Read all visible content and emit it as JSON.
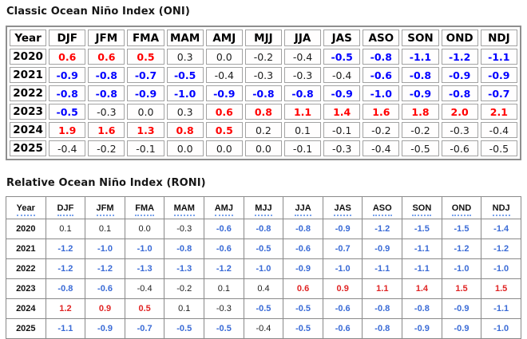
{
  "colors": {
    "oni_warm": "#ff0000",
    "oni_cool": "#0000ff",
    "roni_warm": "#e02424",
    "roni_cool": "#3a6bd6",
    "header_underline": "#7aa3ec",
    "oni_border": "#8f8f8f",
    "roni_border": "#8a8a8a"
  },
  "tables": [
    {
      "id": "oni",
      "title": "Classic Ocean Niño Index (ONI)",
      "columns": [
        "Year",
        "DJF",
        "JFM",
        "FMA",
        "MAM",
        "AMJ",
        "MJJ",
        "JJA",
        "JAS",
        "ASO",
        "SON",
        "OND",
        "NDJ"
      ],
      "rows": [
        {
          "year": "2020",
          "values": [
            "0.6",
            "0.6",
            "0.5",
            "0.3",
            "0.0",
            "-0.2",
            "-0.4",
            "-0.5",
            "-0.8",
            "-1.1",
            "-1.2",
            "-1.1"
          ],
          "tones": [
            "w",
            "w",
            "w",
            "n",
            "n",
            "n",
            "n",
            "c",
            "c",
            "c",
            "c",
            "c"
          ]
        },
        {
          "year": "2021",
          "values": [
            "-0.9",
            "-0.8",
            "-0.7",
            "-0.5",
            "-0.4",
            "-0.3",
            "-0.3",
            "-0.4",
            "-0.6",
            "-0.8",
            "-0.9",
            "-0.9"
          ],
          "tones": [
            "c",
            "c",
            "c",
            "c",
            "n",
            "n",
            "n",
            "n",
            "c",
            "c",
            "c",
            "c"
          ]
        },
        {
          "year": "2022",
          "values": [
            "-0.8",
            "-0.8",
            "-0.9",
            "-1.0",
            "-0.9",
            "-0.8",
            "-0.8",
            "-0.9",
            "-1.0",
            "-0.9",
            "-0.8",
            "-0.7"
          ],
          "tones": [
            "c",
            "c",
            "c",
            "c",
            "c",
            "c",
            "c",
            "c",
            "c",
            "c",
            "c",
            "c"
          ]
        },
        {
          "year": "2023",
          "values": [
            "-0.5",
            "-0.3",
            "0.0",
            "0.3",
            "0.6",
            "0.8",
            "1.1",
            "1.4",
            "1.6",
            "1.8",
            "2.0",
            "2.1"
          ],
          "tones": [
            "c",
            "n",
            "n",
            "n",
            "w",
            "w",
            "w",
            "w",
            "w",
            "w",
            "w",
            "w"
          ]
        },
        {
          "year": "2024",
          "values": [
            "1.9",
            "1.6",
            "1.3",
            "0.8",
            "0.5",
            "0.2",
            "0.1",
            "-0.1",
            "-0.2",
            "-0.2",
            "-0.3",
            "-0.4"
          ],
          "tones": [
            "w",
            "w",
            "w",
            "w",
            "w",
            "n",
            "n",
            "n",
            "n",
            "n",
            "n",
            "n"
          ]
        },
        {
          "year": "2025",
          "values": [
            "-0.4",
            "-0.2",
            "-0.1",
            "0.0",
            "0.0",
            "0.0",
            "-0.1",
            "-0.3",
            "-0.4",
            "-0.5",
            "-0.6",
            "-0.5"
          ],
          "tones": [
            "n",
            "n",
            "n",
            "n",
            "n",
            "n",
            "n",
            "n",
            "n",
            "n",
            "n",
            "n"
          ]
        }
      ]
    },
    {
      "id": "roni",
      "title": "Relative Ocean Niño Index (RONI)",
      "columns": [
        "Year",
        "DJF",
        "JFM",
        "FMA",
        "MAM",
        "AMJ",
        "MJJ",
        "JJA",
        "JAS",
        "ASO",
        "SON",
        "OND",
        "NDJ"
      ],
      "rows": [
        {
          "year": "2020",
          "values": [
            "0.1",
            "0.1",
            "0.0",
            "-0.3",
            "-0.6",
            "-0.8",
            "-0.8",
            "-0.9",
            "-1.2",
            "-1.5",
            "-1.5",
            "-1.4"
          ],
          "tones": [
            "n",
            "n",
            "n",
            "n",
            "c",
            "c",
            "c",
            "c",
            "c",
            "c",
            "c",
            "c"
          ]
        },
        {
          "year": "2021",
          "values": [
            "-1.2",
            "-1.0",
            "-1.0",
            "-0.8",
            "-0.6",
            "-0.5",
            "-0.6",
            "-0.7",
            "-0.9",
            "-1.1",
            "-1.2",
            "-1.2"
          ],
          "tones": [
            "c",
            "c",
            "c",
            "c",
            "c",
            "c",
            "c",
            "c",
            "c",
            "c",
            "c",
            "c"
          ]
        },
        {
          "year": "2022",
          "values": [
            "-1.2",
            "-1.2",
            "-1.3",
            "-1.3",
            "-1.2",
            "-1.0",
            "-0.9",
            "-1.0",
            "-1.1",
            "-1.1",
            "-1.0",
            "-1.0"
          ],
          "tones": [
            "c",
            "c",
            "c",
            "c",
            "c",
            "c",
            "c",
            "c",
            "c",
            "c",
            "c",
            "c"
          ]
        },
        {
          "year": "2023",
          "values": [
            "-0.8",
            "-0.6",
            "-0.4",
            "-0.2",
            "0.1",
            "0.4",
            "0.6",
            "0.9",
            "1.1",
            "1.4",
            "1.5",
            "1.5"
          ],
          "tones": [
            "c",
            "c",
            "n",
            "n",
            "n",
            "n",
            "w",
            "w",
            "w",
            "w",
            "w",
            "w"
          ]
        },
        {
          "year": "2024",
          "values": [
            "1.2",
            "0.9",
            "0.5",
            "0.1",
            "-0.3",
            "-0.5",
            "-0.5",
            "-0.6",
            "-0.8",
            "-0.8",
            "-0.9",
            "-1.1"
          ],
          "tones": [
            "w",
            "w",
            "w",
            "n",
            "n",
            "c",
            "c",
            "c",
            "c",
            "c",
            "c",
            "c"
          ]
        },
        {
          "year": "2025",
          "values": [
            "-1.1",
            "-0.9",
            "-0.7",
            "-0.5",
            "-0.5",
            "-0.4",
            "-0.5",
            "-0.6",
            "-0.8",
            "-0.9",
            "-0.9",
            "-1.0"
          ],
          "tones": [
            "c",
            "c",
            "c",
            "c",
            "c",
            "n",
            "c",
            "c",
            "c",
            "c",
            "c",
            "c"
          ]
        }
      ]
    }
  ],
  "chart_data": [
    {
      "type": "table",
      "title": "Classic Ocean Niño Index (ONI)",
      "columns": [
        "Year",
        "DJF",
        "JFM",
        "FMA",
        "MAM",
        "AMJ",
        "MJJ",
        "JJA",
        "JAS",
        "ASO",
        "SON",
        "OND",
        "NDJ"
      ],
      "rows": [
        {
          "year": 2020,
          "values": [
            0.6,
            0.6,
            0.5,
            0.3,
            0.0,
            -0.2,
            -0.4,
            -0.5,
            -0.8,
            -1.1,
            -1.2,
            -1.1
          ]
        },
        {
          "year": 2021,
          "values": [
            -0.9,
            -0.8,
            -0.7,
            -0.5,
            -0.4,
            -0.3,
            -0.3,
            -0.4,
            -0.6,
            -0.8,
            -0.9,
            -0.9
          ]
        },
        {
          "year": 2022,
          "values": [
            -0.8,
            -0.8,
            -0.9,
            -1.0,
            -0.9,
            -0.8,
            -0.8,
            -0.9,
            -1.0,
            -0.9,
            -0.8,
            -0.7
          ]
        },
        {
          "year": 2023,
          "values": [
            -0.5,
            -0.3,
            0.0,
            0.3,
            0.6,
            0.8,
            1.1,
            1.4,
            1.6,
            1.8,
            2.0,
            2.1
          ]
        },
        {
          "year": 2024,
          "values": [
            1.9,
            1.6,
            1.3,
            0.8,
            0.5,
            0.2,
            0.1,
            -0.1,
            -0.2,
            -0.2,
            -0.3,
            -0.4
          ]
        },
        {
          "year": 2025,
          "values": [
            -0.4,
            -0.2,
            -0.1,
            0.0,
            0.0,
            0.0,
            -0.1,
            -0.3,
            -0.4,
            -0.5,
            -0.6,
            -0.5
          ]
        }
      ]
    },
    {
      "type": "table",
      "title": "Relative Ocean Niño Index (RONI)",
      "columns": [
        "Year",
        "DJF",
        "JFM",
        "FMA",
        "MAM",
        "AMJ",
        "MJJ",
        "JJA",
        "JAS",
        "ASO",
        "SON",
        "OND",
        "NDJ"
      ],
      "rows": [
        {
          "year": 2020,
          "values": [
            0.1,
            0.1,
            0.0,
            -0.3,
            -0.6,
            -0.8,
            -0.8,
            -0.9,
            -1.2,
            -1.5,
            -1.5,
            -1.4
          ]
        },
        {
          "year": 2021,
          "values": [
            -1.2,
            -1.0,
            -1.0,
            -0.8,
            -0.6,
            -0.5,
            -0.6,
            -0.7,
            -0.9,
            -1.1,
            -1.2,
            -1.2
          ]
        },
        {
          "year": 2022,
          "values": [
            -1.2,
            -1.2,
            -1.3,
            -1.3,
            -1.2,
            -1.0,
            -0.9,
            -1.0,
            -1.1,
            -1.1,
            -1.0,
            -1.0
          ]
        },
        {
          "year": 2023,
          "values": [
            -0.8,
            -0.6,
            -0.4,
            -0.2,
            0.1,
            0.4,
            0.6,
            0.9,
            1.1,
            1.4,
            1.5,
            1.5
          ]
        },
        {
          "year": 2024,
          "values": [
            1.2,
            0.9,
            0.5,
            0.1,
            -0.3,
            -0.5,
            -0.5,
            -0.6,
            -0.8,
            -0.8,
            -0.9,
            -1.1
          ]
        },
        {
          "year": 2025,
          "values": [
            -1.1,
            -0.9,
            -0.7,
            -0.5,
            -0.5,
            -0.4,
            -0.5,
            -0.6,
            -0.8,
            -0.9,
            -0.9,
            -1.0
          ]
        }
      ]
    }
  ]
}
